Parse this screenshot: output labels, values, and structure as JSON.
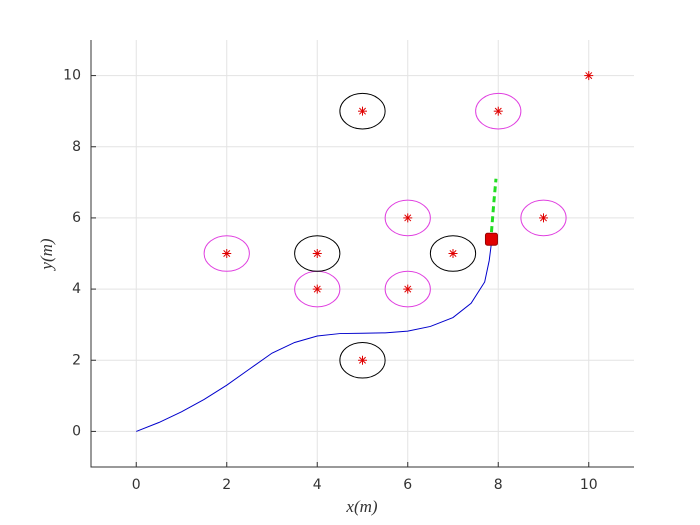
{
  "chart_data": {
    "type": "trajectory",
    "xlabel": "x(m)",
    "ylabel": "y(m)",
    "xlim": [
      -1,
      11
    ],
    "ylim": [
      -1,
      11
    ],
    "xticks": [
      0,
      2,
      4,
      6,
      8,
      10
    ],
    "yticks": [
      0,
      2,
      4,
      6,
      8,
      10
    ],
    "grid": true,
    "path": {
      "color": "#0000cc",
      "x": [
        0,
        0.5,
        1,
        1.5,
        2,
        2.5,
        3,
        3.5,
        4,
        4.5,
        5,
        5.5,
        6,
        6.5,
        7,
        7.4,
        7.7,
        7.8,
        7.85
      ],
      "y": [
        0,
        0.25,
        0.55,
        0.9,
        1.3,
        1.75,
        2.2,
        2.5,
        2.68,
        2.75,
        2.76,
        2.77,
        2.82,
        2.95,
        3.2,
        3.6,
        4.2,
        4.8,
        5.3
      ]
    },
    "obstacles": {
      "radius": 0.5,
      "center_color": "#e00000",
      "x": [
        2,
        4,
        6,
        6,
        8,
        9,
        5,
        4,
        7,
        5
      ],
      "y": [
        5,
        4,
        6,
        4,
        9,
        6,
        9,
        5,
        5,
        2
      ],
      "colors": [
        "#e040e0",
        "#e040e0",
        "#e040e0",
        "#e040e0",
        "#e040e0",
        "#e040e0",
        "#000000",
        "#000000",
        "#000000",
        "#000000"
      ]
    },
    "goal": {
      "x": 10,
      "y": 10,
      "color": "#e00000"
    },
    "robot": {
      "x": 7.85,
      "y": 5.4,
      "color": "#e00000"
    },
    "prediction": {
      "color": "#22dd22",
      "x": [
        7.85,
        7.9,
        7.95
      ],
      "y": [
        5.6,
        6.4,
        7.1
      ]
    }
  }
}
